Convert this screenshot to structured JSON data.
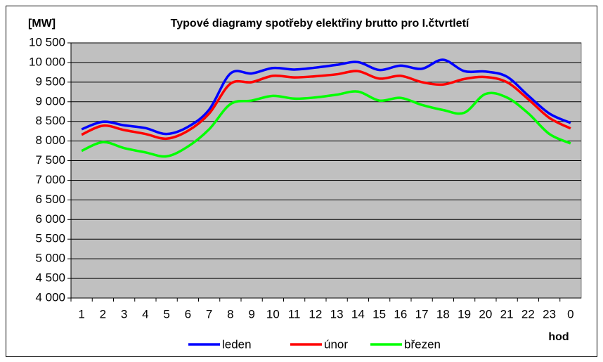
{
  "chart_data": {
    "type": "line",
    "title": "Typové diagramy spotřeby elektřiny brutto pro I.čtvrtletí",
    "y_label": "[MW]",
    "x_label": "hod",
    "categories": [
      "1",
      "2",
      "3",
      "4",
      "5",
      "6",
      "7",
      "8",
      "9",
      "10",
      "11",
      "12",
      "13",
      "14",
      "15",
      "16",
      "17",
      "18",
      "19",
      "20",
      "21",
      "22",
      "23",
      "0"
    ],
    "series": [
      {
        "name": "leden",
        "color": "#0000ff",
        "values": [
          8300,
          8490,
          8400,
          8330,
          8180,
          8360,
          8800,
          9720,
          9720,
          9860,
          9820,
          9870,
          9940,
          10010,
          9810,
          9920,
          9840,
          10070,
          9780,
          9770,
          9640,
          9160,
          8700,
          8460
        ]
      },
      {
        "name": "únor",
        "color": "#ff0000",
        "values": [
          8160,
          8390,
          8280,
          8180,
          8060,
          8260,
          8700,
          9460,
          9500,
          9660,
          9620,
          9650,
          9700,
          9780,
          9590,
          9660,
          9500,
          9440,
          9580,
          9630,
          9500,
          9070,
          8590,
          8320
        ]
      },
      {
        "name": "březen",
        "color": "#00ff00",
        "values": [
          7750,
          7970,
          7820,
          7710,
          7610,
          7860,
          8300,
          8940,
          9030,
          9150,
          9080,
          9110,
          9180,
          9260,
          9030,
          9100,
          8920,
          8790,
          8720,
          9200,
          9110,
          8710,
          8180,
          7940
        ]
      }
    ],
    "ylim": [
      4000,
      10500
    ],
    "yticks": [
      {
        "value": 4000,
        "label": "4 000"
      },
      {
        "value": 4500,
        "label": "4 500"
      },
      {
        "value": 5000,
        "label": "5 000"
      },
      {
        "value": 5500,
        "label": "5 500"
      },
      {
        "value": 6000,
        "label": "6 000"
      },
      {
        "value": 6500,
        "label": "6 500"
      },
      {
        "value": 7000,
        "label": "7 000"
      },
      {
        "value": 7500,
        "label": "7 500"
      },
      {
        "value": 8000,
        "label": "8 000"
      },
      {
        "value": 8500,
        "label": "8 500"
      },
      {
        "value": 9000,
        "label": "9 000"
      },
      {
        "value": 9500,
        "label": "9 500"
      },
      {
        "value": 10000,
        "label": "10 000"
      },
      {
        "value": 10500,
        "label": "10 500"
      }
    ],
    "grid": true,
    "legend": "bottom"
  }
}
